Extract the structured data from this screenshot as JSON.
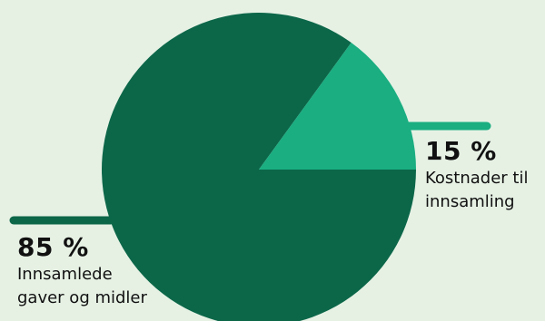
{
  "colors": {
    "background": "#e6f1e4",
    "major_slice": "#0c6749",
    "minor_slice": "#1aae81"
  },
  "chart_data": {
    "type": "pie",
    "title": "",
    "slices": [
      {
        "label": "Innsamlede gaver og midler",
        "value": 85,
        "display": "85 %",
        "color": "#0c6749"
      },
      {
        "label": "Kostnader til innsamling",
        "value": 15,
        "display": "15 %",
        "color": "#1aae81"
      }
    ],
    "start_angle_deg": 0,
    "direction": "counterclockwise"
  },
  "labels": {
    "costs": {
      "pct": "15 %",
      "line1": "Kostnader til",
      "line2": "innsamling"
    },
    "gifts": {
      "pct": "85 %",
      "line1": "Innsamlede",
      "line2": "gaver og midler"
    }
  }
}
